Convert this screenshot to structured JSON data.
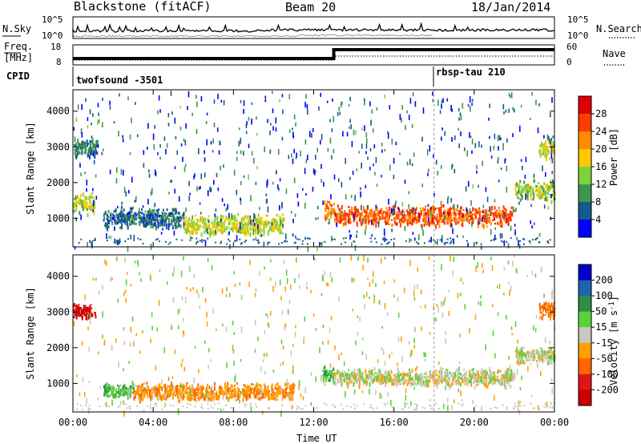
{
  "header": {
    "station": "Blackstone (fitACF)",
    "beam": "Beam 20",
    "date": "18/Jan/2014"
  },
  "left_labels": {
    "nsky": "N.Sky",
    "freq_line1": "Freq.",
    "freq_line2": "[MHz]",
    "cpid": "CPID"
  },
  "right_labels": {
    "nsearch": "N.Search",
    "nave": "Nave"
  },
  "noise_axis": {
    "left_ticks": [
      "10^5",
      "10^0"
    ],
    "right_ticks": [
      "10^5",
      "10^0"
    ]
  },
  "freq_axis": {
    "left_ticks": [
      "18",
      "8"
    ],
    "right_ticks": [
      "60",
      "0"
    ]
  },
  "cpid_segments": [
    {
      "label": "twofsound -3501",
      "start_hour": 0
    },
    {
      "label": "rbsp-tau 210",
      "start_hour": 18
    }
  ],
  "colorbars": {
    "power": {
      "label": "Power [dB]",
      "ticks": [
        "28",
        "24",
        "20",
        "16",
        "12",
        "8",
        "4"
      ],
      "colors": [
        "#e00000",
        "#ff3c00",
        "#ff8c00",
        "#ffc800",
        "#7fd23c",
        "#3c9650",
        "#145a8c",
        "#0000ff"
      ]
    },
    "velocity": {
      "label": "Velocity [m s",
      "label_sup": "-1",
      "label_end": "]",
      "ticks": [
        "200",
        "100",
        "50",
        "15",
        "-15",
        "-50",
        "-100",
        "-200"
      ],
      "colors": [
        "#0000c8",
        "#1e64b4",
        "#2d8c46",
        "#5ad23c",
        "#c8c8c0",
        "#ffa000",
        "#ff6400",
        "#e01414",
        "#c80000"
      ]
    }
  },
  "chart_data": [
    {
      "type": "heatmap",
      "panel": "power",
      "ylabel": "Slant Range [km]",
      "xlabel": "Time UT",
      "xlim": [
        0,
        24
      ],
      "ylim": [
        200,
        4600
      ],
      "x_ticks": [
        "00:00",
        "04:00",
        "08:00",
        "12:00",
        "16:00",
        "20:00",
        "00:00"
      ],
      "y_ticks": [
        1000,
        2000,
        3000,
        4000
      ],
      "zlim": [
        0,
        30
      ],
      "features": [
        {
          "t_start": 0.0,
          "t_end": 1.1,
          "range_km": 1450,
          "value_db": 15
        },
        {
          "t_start": 0.0,
          "t_end": 1.2,
          "range_km": 3000,
          "value_db": 8
        },
        {
          "t_start": 1.5,
          "t_end": 5.5,
          "range_km": 1050,
          "value_db": 7
        },
        {
          "t_start": 5.5,
          "t_end": 10.5,
          "range_km": 850,
          "value_db": 16
        },
        {
          "t_start": 12.5,
          "t_end": 13.0,
          "range_km": 1300,
          "value_db": 22
        },
        {
          "t_start": 13.0,
          "t_end": 22.0,
          "range_km": 1100,
          "value_db": 25
        },
        {
          "t_start": 22.0,
          "t_end": 24.0,
          "range_km": 1800,
          "value_db": 14
        },
        {
          "t_start": 23.2,
          "t_end": 24.0,
          "range_km": 3000,
          "value_db": 16
        }
      ]
    },
    {
      "type": "heatmap",
      "panel": "velocity",
      "ylabel": "Slant Range [km]",
      "xlabel": "Time UT",
      "xlim": [
        0,
        24
      ],
      "ylim": [
        200,
        4600
      ],
      "x_ticks": [
        "00:00",
        "04:00",
        "08:00",
        "12:00",
        "16:00",
        "20:00",
        "00:00"
      ],
      "y_ticks": [
        1000,
        2000,
        3000,
        4000
      ],
      "zlim": [
        -200,
        200
      ],
      "features": [
        {
          "t_start": 0.0,
          "t_end": 1.1,
          "range_km": 3050,
          "value_ms": -200
        },
        {
          "t_start": 1.5,
          "t_end": 3.0,
          "range_km": 850,
          "value_ms": 40
        },
        {
          "t_start": 3.0,
          "t_end": 11.0,
          "range_km": 800,
          "value_ms": -40
        },
        {
          "t_start": 12.4,
          "t_end": 13.0,
          "range_km": 1300,
          "value_ms": 40
        },
        {
          "t_start": 13.0,
          "t_end": 22.0,
          "range_km": 1200,
          "value_ms": 0
        },
        {
          "t_start": 22.0,
          "t_end": 24.0,
          "range_km": 1800,
          "value_ms": 0
        },
        {
          "t_start": 23.2,
          "t_end": 24.0,
          "range_km": 3100,
          "value_ms": -60
        }
      ]
    }
  ]
}
